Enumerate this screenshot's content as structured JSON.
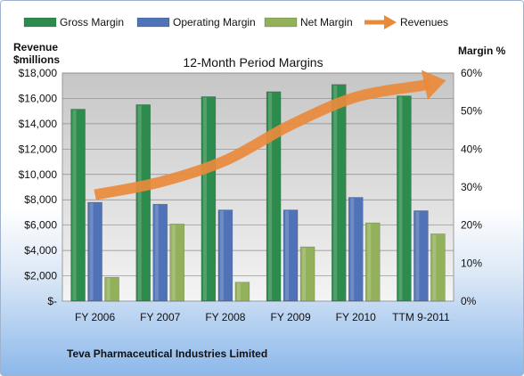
{
  "chart_data": {
    "type": "bar",
    "title": "12-Month Period Margins",
    "left_axis_label_line1": "Revenue",
    "left_axis_label_line2": "$millions",
    "right_axis_label": "Margin %",
    "categories": [
      "FY 2006",
      "FY 2007",
      "FY 2008",
      "FY 2009",
      "FY 2010",
      "TTM 9-2011"
    ],
    "ylim_left": [
      0,
      18000
    ],
    "ylim_right": [
      0,
      60
    ],
    "left_ticks": [
      0,
      2000,
      4000,
      6000,
      8000,
      10000,
      12000,
      14000,
      16000,
      18000
    ],
    "left_tick_labels": [
      "$-",
      "$2,000",
      "$4,000",
      "$6,000",
      "$8,000",
      "$10,000",
      "$12,000",
      "$14,000",
      "$16,000",
      "$18,000"
    ],
    "right_ticks": [
      0,
      10,
      20,
      30,
      40,
      50,
      60
    ],
    "right_tick_labels": [
      "0%",
      "10%",
      "20%",
      "30%",
      "40%",
      "50%",
      "60%"
    ],
    "series": [
      {
        "name": "Gross Margin",
        "axis": "right",
        "color": "#2e8b4e",
        "values": [
          50.5,
          51.7,
          53.8,
          55.1,
          57.0,
          54.0
        ]
      },
      {
        "name": "Operating Margin",
        "axis": "right",
        "color": "#4f73b6",
        "values": [
          26.0,
          25.5,
          24.0,
          24.0,
          27.3,
          23.8
        ]
      },
      {
        "name": "Net Margin",
        "axis": "right",
        "color": "#93b05a",
        "values": [
          6.3,
          20.3,
          5.0,
          14.3,
          20.6,
          17.7
        ]
      }
    ],
    "line_series": {
      "name": "Revenues",
      "axis": "left",
      "color": "#e98a3b",
      "values": [
        8400,
        9400,
        11100,
        13900,
        16100,
        17000
      ]
    },
    "grid": true,
    "legend": "top"
  },
  "footer": "Teva Pharmaceutical  Industries Limited"
}
